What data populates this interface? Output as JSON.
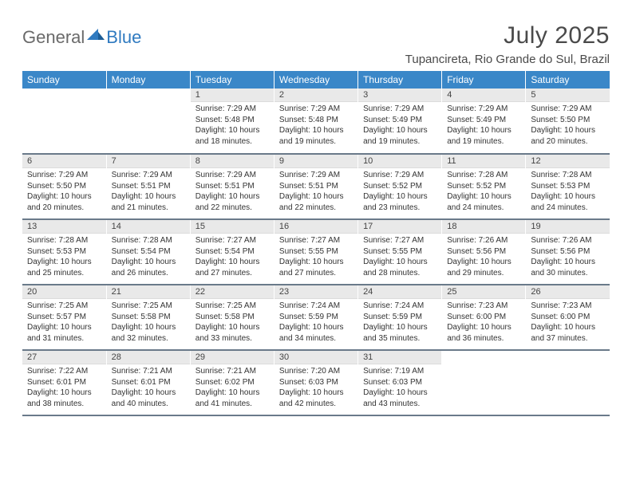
{
  "logo": {
    "word1": "General",
    "word2": "Blue",
    "mark_color": "#2f7ac0"
  },
  "header": {
    "title": "July 2025",
    "location": "Tupancireta, Rio Grande do Sul, Brazil"
  },
  "calendar": {
    "type": "table",
    "header_bg": "#3a87c8",
    "header_fg": "#ffffff",
    "daynum_bg": "#e9e9e9",
    "row_divider_color": "#6a7a8a",
    "text_color": "#333333",
    "cell_fontsize": 10,
    "header_fontsize": 12,
    "columns": [
      "Sunday",
      "Monday",
      "Tuesday",
      "Wednesday",
      "Thursday",
      "Friday",
      "Saturday"
    ],
    "leading_blanks": 2,
    "days": [
      {
        "n": 1,
        "sunrise": "7:29 AM",
        "sunset": "5:48 PM",
        "daylight": "10 hours and 18 minutes."
      },
      {
        "n": 2,
        "sunrise": "7:29 AM",
        "sunset": "5:48 PM",
        "daylight": "10 hours and 19 minutes."
      },
      {
        "n": 3,
        "sunrise": "7:29 AM",
        "sunset": "5:49 PM",
        "daylight": "10 hours and 19 minutes."
      },
      {
        "n": 4,
        "sunrise": "7:29 AM",
        "sunset": "5:49 PM",
        "daylight": "10 hours and 19 minutes."
      },
      {
        "n": 5,
        "sunrise": "7:29 AM",
        "sunset": "5:50 PM",
        "daylight": "10 hours and 20 minutes."
      },
      {
        "n": 6,
        "sunrise": "7:29 AM",
        "sunset": "5:50 PM",
        "daylight": "10 hours and 20 minutes."
      },
      {
        "n": 7,
        "sunrise": "7:29 AM",
        "sunset": "5:51 PM",
        "daylight": "10 hours and 21 minutes."
      },
      {
        "n": 8,
        "sunrise": "7:29 AM",
        "sunset": "5:51 PM",
        "daylight": "10 hours and 22 minutes."
      },
      {
        "n": 9,
        "sunrise": "7:29 AM",
        "sunset": "5:51 PM",
        "daylight": "10 hours and 22 minutes."
      },
      {
        "n": 10,
        "sunrise": "7:29 AM",
        "sunset": "5:52 PM",
        "daylight": "10 hours and 23 minutes."
      },
      {
        "n": 11,
        "sunrise": "7:28 AM",
        "sunset": "5:52 PM",
        "daylight": "10 hours and 24 minutes."
      },
      {
        "n": 12,
        "sunrise": "7:28 AM",
        "sunset": "5:53 PM",
        "daylight": "10 hours and 24 minutes."
      },
      {
        "n": 13,
        "sunrise": "7:28 AM",
        "sunset": "5:53 PM",
        "daylight": "10 hours and 25 minutes."
      },
      {
        "n": 14,
        "sunrise": "7:28 AM",
        "sunset": "5:54 PM",
        "daylight": "10 hours and 26 minutes."
      },
      {
        "n": 15,
        "sunrise": "7:27 AM",
        "sunset": "5:54 PM",
        "daylight": "10 hours and 27 minutes."
      },
      {
        "n": 16,
        "sunrise": "7:27 AM",
        "sunset": "5:55 PM",
        "daylight": "10 hours and 27 minutes."
      },
      {
        "n": 17,
        "sunrise": "7:27 AM",
        "sunset": "5:55 PM",
        "daylight": "10 hours and 28 minutes."
      },
      {
        "n": 18,
        "sunrise": "7:26 AM",
        "sunset": "5:56 PM",
        "daylight": "10 hours and 29 minutes."
      },
      {
        "n": 19,
        "sunrise": "7:26 AM",
        "sunset": "5:56 PM",
        "daylight": "10 hours and 30 minutes."
      },
      {
        "n": 20,
        "sunrise": "7:25 AM",
        "sunset": "5:57 PM",
        "daylight": "10 hours and 31 minutes."
      },
      {
        "n": 21,
        "sunrise": "7:25 AM",
        "sunset": "5:58 PM",
        "daylight": "10 hours and 32 minutes."
      },
      {
        "n": 22,
        "sunrise": "7:25 AM",
        "sunset": "5:58 PM",
        "daylight": "10 hours and 33 minutes."
      },
      {
        "n": 23,
        "sunrise": "7:24 AM",
        "sunset": "5:59 PM",
        "daylight": "10 hours and 34 minutes."
      },
      {
        "n": 24,
        "sunrise": "7:24 AM",
        "sunset": "5:59 PM",
        "daylight": "10 hours and 35 minutes."
      },
      {
        "n": 25,
        "sunrise": "7:23 AM",
        "sunset": "6:00 PM",
        "daylight": "10 hours and 36 minutes."
      },
      {
        "n": 26,
        "sunrise": "7:23 AM",
        "sunset": "6:00 PM",
        "daylight": "10 hours and 37 minutes."
      },
      {
        "n": 27,
        "sunrise": "7:22 AM",
        "sunset": "6:01 PM",
        "daylight": "10 hours and 38 minutes."
      },
      {
        "n": 28,
        "sunrise": "7:21 AM",
        "sunset": "6:01 PM",
        "daylight": "10 hours and 40 minutes."
      },
      {
        "n": 29,
        "sunrise": "7:21 AM",
        "sunset": "6:02 PM",
        "daylight": "10 hours and 41 minutes."
      },
      {
        "n": 30,
        "sunrise": "7:20 AM",
        "sunset": "6:03 PM",
        "daylight": "10 hours and 42 minutes."
      },
      {
        "n": 31,
        "sunrise": "7:19 AM",
        "sunset": "6:03 PM",
        "daylight": "10 hours and 43 minutes."
      }
    ],
    "labels": {
      "sunrise": "Sunrise:",
      "sunset": "Sunset:",
      "daylight": "Daylight:"
    }
  }
}
